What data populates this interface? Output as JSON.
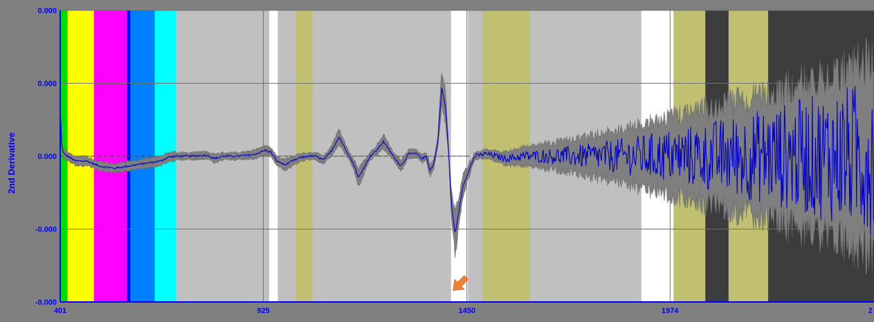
{
  "colors": {
    "background": "#808080",
    "plot_base": "#c0c0c0",
    "axis_text": "#0000ff",
    "mean_line": "#0000cc",
    "envelope": "#7f7f7f",
    "annotation_arrow": "#f08030"
  },
  "chart_data": {
    "type": "line",
    "title": "",
    "xlabel": "",
    "ylabel": "2nd Derivative",
    "xlim": [
      401,
      2500
    ],
    "ylim": [
      -0.3,
      0.3
    ],
    "x_ticks": [
      401,
      925,
      1450,
      1974
    ],
    "x_tick_labels": [
      "401",
      "925",
      "1450",
      "1974"
    ],
    "x_end_label": "2",
    "y_ticks": [
      0.3,
      0.15,
      0.0,
      -0.15,
      -0.3
    ],
    "y_tick_labels": [
      "0.000",
      "0.000",
      "0.000",
      "-0.000",
      "-0.000"
    ],
    "grid": true,
    "wavelength_bands": [
      {
        "from": 401,
        "to": 420,
        "color": "#00dd00"
      },
      {
        "from": 420,
        "to": 488,
        "color": "#ffff00"
      },
      {
        "from": 488,
        "to": 573,
        "color": "#ff00ff"
      },
      {
        "from": 573,
        "to": 582,
        "color": "#0000ff"
      },
      {
        "from": 582,
        "to": 645,
        "color": "#0080ff"
      },
      {
        "from": 645,
        "to": 700,
        "color": "#00ffff"
      },
      {
        "from": 700,
        "to": 1409,
        "color": "#c0c0c0"
      },
      {
        "from": 1409,
        "to": 1453,
        "color": "#ffffff"
      },
      {
        "from": 1453,
        "to": 1490,
        "color": "#c0c0c0"
      },
      {
        "from": 1490,
        "to": 1613,
        "color": "#c0c070"
      },
      {
        "from": 1613,
        "to": 1900,
        "color": "#c0c0c0"
      },
      {
        "from": 1900,
        "to": 1983,
        "color": "#ffffff"
      },
      {
        "from": 1983,
        "to": 2065,
        "color": "#c0c070"
      },
      {
        "from": 2065,
        "to": 2125,
        "color": "#3c3c3c"
      },
      {
        "from": 2125,
        "to": 2227,
        "color": "#c0c070"
      },
      {
        "from": 2227,
        "to": 2500,
        "color": "#3c3c3c"
      }
    ],
    "extra_bands": [
      {
        "from": 940,
        "to": 962,
        "color": "#ffffff"
      },
      {
        "from": 1009,
        "to": 1052,
        "color": "#c0c070"
      }
    ],
    "series": [
      {
        "values_x": [
          401,
          405,
          410,
          420,
          440,
          470,
          500,
          540,
          580,
          620,
          660,
          680,
          700,
          740,
          780,
          800,
          820,
          860,
          900,
          930,
          945,
          960,
          980,
          1000,
          1020,
          1040,
          1060,
          1080,
          1100,
          1120,
          1140,
          1160,
          1170,
          1180,
          1200,
          1215,
          1235,
          1260,
          1280,
          1300,
          1320,
          1335,
          1345,
          1355,
          1365,
          1375,
          1385,
          1395,
          1402,
          1410,
          1420,
          1440,
          1470,
          1500,
          1550,
          1600,
          1700,
          1800,
          1900,
          2000,
          2100,
          2200,
          2300,
          2400,
          2500
        ],
        "values_y": [
          0.1,
          0.02,
          0.005,
          0.0,
          -0.01,
          -0.01,
          -0.02,
          -0.025,
          -0.02,
          -0.015,
          -0.01,
          -0.002,
          0.0,
          0.0,
          0.002,
          -0.005,
          0.0,
          0.0,
          0.003,
          0.012,
          0.008,
          -0.01,
          -0.018,
          -0.01,
          -0.003,
          0.0,
          0.0,
          -0.008,
          0.01,
          0.04,
          0.01,
          -0.02,
          -0.045,
          -0.03,
          0.0,
          0.01,
          0.03,
          0.0,
          -0.02,
          0.005,
          0.005,
          -0.005,
          0.0,
          -0.03,
          -0.015,
          0.03,
          0.14,
          0.1,
          0.02,
          -0.1,
          -0.16,
          -0.06,
          0.0,
          0.005,
          -0.005,
          0.0,
          0.0,
          0.0,
          0.0,
          0.0,
          0.0,
          0.0,
          0.0,
          0.0,
          0.0
        ]
      }
    ],
    "annotations": [
      {
        "type": "arrow",
        "x": 1445,
        "y": -0.255
      }
    ]
  }
}
